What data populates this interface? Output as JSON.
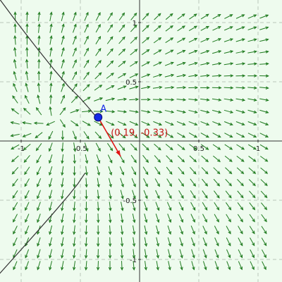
{
  "plot": {
    "xlim": [
      -1.2,
      1.2
    ],
    "ylim": [
      -1.2,
      1.2
    ],
    "grid_step": 0.5,
    "grid": true,
    "colors": {
      "background": "#eefbee",
      "grid": "#b9c7b9",
      "axis": "#333333",
      "field_arrows": "#1e7a1e",
      "curve": "#333333",
      "vector": "#e01515",
      "point_fill": "#1428e6",
      "point_stroke": "#0a0a70",
      "point_label": "#1428e6",
      "vector_label": "#c41212"
    }
  },
  "ticks": {
    "x": [
      {
        "value": -1,
        "label": "-1"
      },
      {
        "value": -0.5,
        "label": "-0.5"
      },
      {
        "value": 0.5,
        "label": "0.5"
      },
      {
        "value": 1,
        "label": "1"
      }
    ],
    "y": [
      {
        "value": 1,
        "label": "1"
      },
      {
        "value": 0.5,
        "label": "0.5"
      },
      {
        "value": -0.5,
        "label": "-0.5"
      },
      {
        "value": -1,
        "label": "-1"
      }
    ]
  },
  "field": {
    "description_function": "(y+x, y-x) sampled",
    "x_range": [
      -1.05,
      1.05
    ],
    "y_range": [
      -1.05,
      1.05
    ],
    "step": 0.1,
    "arrow_length": 0.075
  },
  "point": {
    "label": "A",
    "x": -0.35,
    "y": 0.2
  },
  "vector": {
    "label": "(0.19, -0.33)",
    "dx": 0.19,
    "dy": -0.33
  },
  "curve": {
    "points": [
      [
        -1.22,
        1.25
      ],
      [
        -1.05,
        1.02
      ],
      [
        -0.88,
        0.8
      ],
      [
        -0.72,
        0.6
      ],
      [
        -0.6,
        0.46
      ],
      [
        -0.5,
        0.36
      ],
      [
        -0.43,
        0.28
      ],
      [
        -0.38,
        0.22
      ],
      [
        -0.35,
        0.2
      ]
    ],
    "lower_points": [
      [
        -0.46,
        -0.27
      ],
      [
        -0.52,
        -0.36
      ],
      [
        -0.6,
        -0.46
      ],
      [
        -0.72,
        -0.6
      ],
      [
        -0.86,
        -0.76
      ],
      [
        -1.02,
        -0.94
      ],
      [
        -1.2,
        -1.14
      ],
      [
        -1.3,
        -1.25
      ]
    ]
  }
}
